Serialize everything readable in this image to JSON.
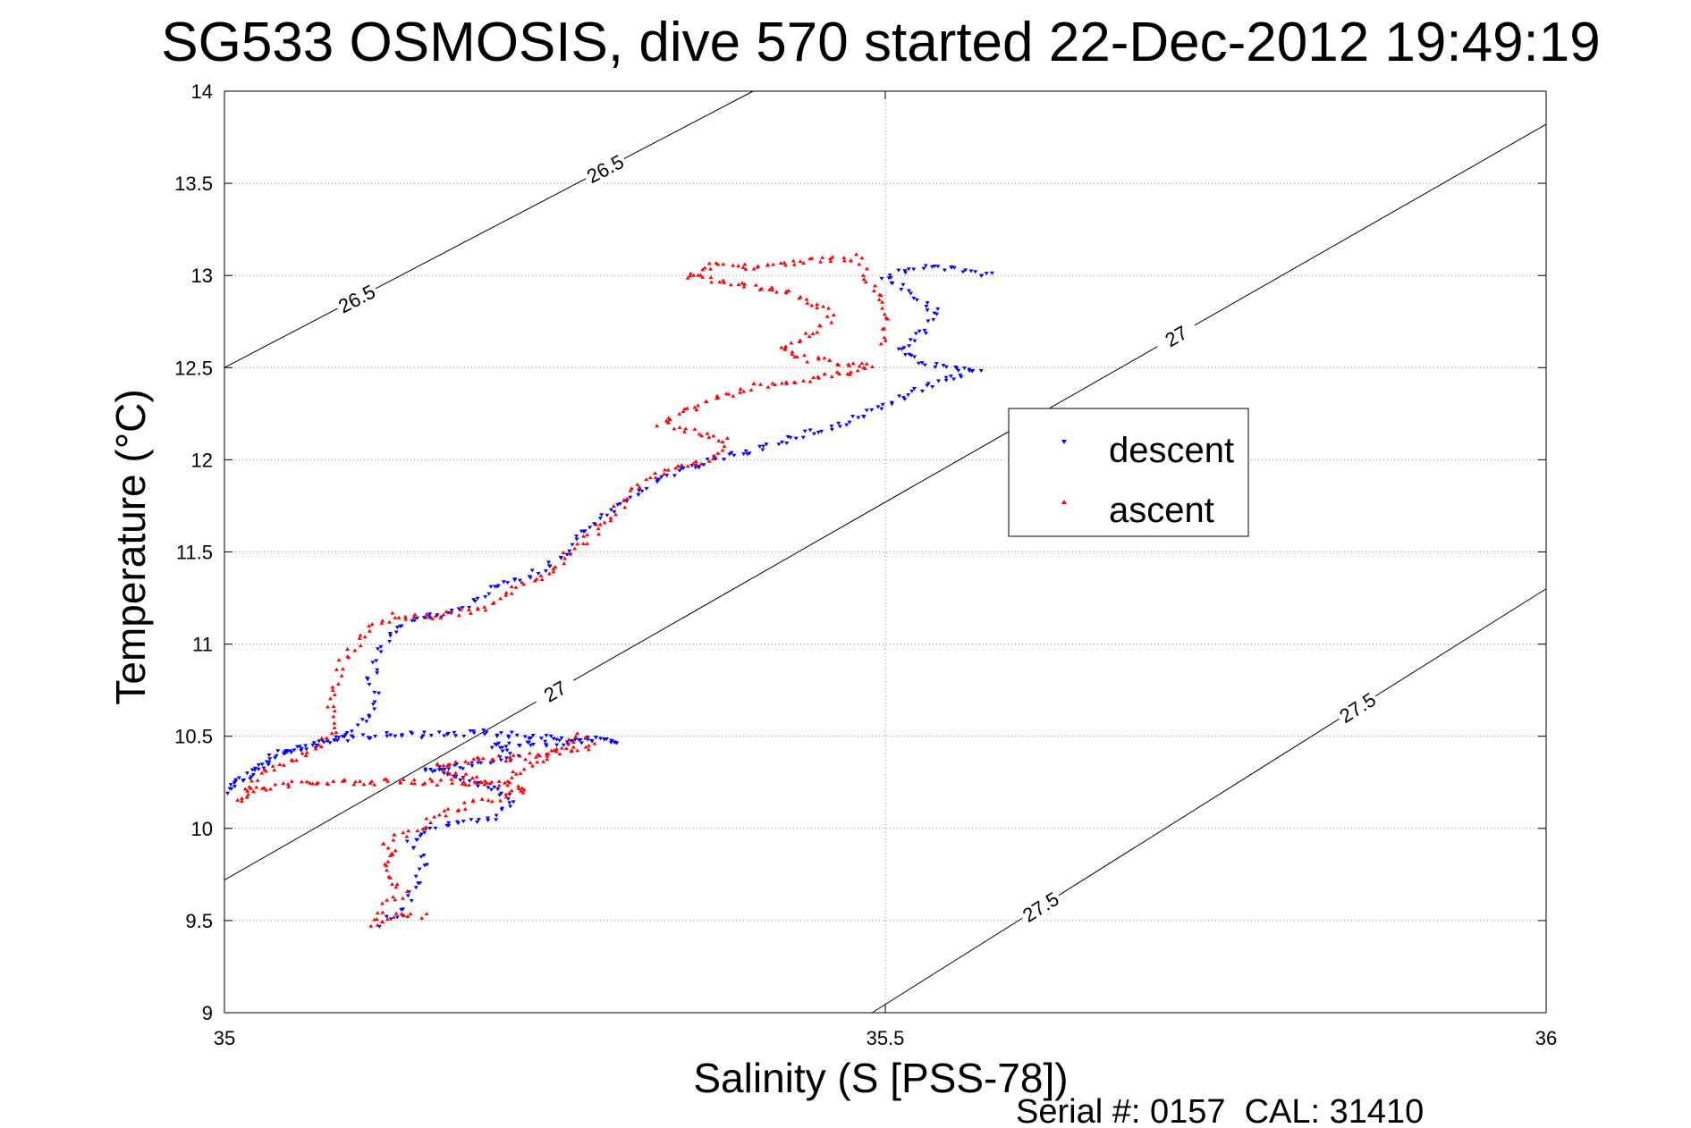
{
  "chart_data": {
    "type": "scatter",
    "title": "SG533 OSMOSIS, dive 570 started 22-Dec-2012 19:49:19",
    "xlabel": "Salinity (S [PSS-78])",
    "ylabel": "Temperature (°C)",
    "footer": "Serial #: 0157  CAL: 31410",
    "xlim": [
      35,
      36
    ],
    "ylim": [
      9,
      14
    ],
    "x_ticks": [
      "35",
      "35.5",
      "36"
    ],
    "y_ticks": [
      "9",
      "9.5",
      "10",
      "10.5",
      "11",
      "11.5",
      "12",
      "12.5",
      "13",
      "13.5",
      "14"
    ],
    "grid": "dotted",
    "legend_position": "right-center",
    "series": [
      {
        "name": "descent",
        "color": "#0000ff",
        "marker": "triangle-down",
        "path": [
          [
            35.12,
            9.48
          ],
          [
            35.135,
            9.55
          ],
          [
            35.14,
            9.62
          ],
          [
            35.145,
            9.72
          ],
          [
            35.15,
            9.82
          ],
          [
            35.14,
            9.92
          ],
          [
            35.155,
            10.0
          ],
          [
            35.2,
            10.05
          ],
          [
            35.22,
            10.15
          ],
          [
            35.2,
            10.22
          ],
          [
            35.17,
            10.3
          ],
          [
            35.15,
            10.32
          ],
          [
            35.2,
            10.35
          ],
          [
            35.22,
            10.4
          ],
          [
            35.2,
            10.45
          ],
          [
            35.3,
            10.48
          ],
          [
            35.26,
            10.48
          ],
          [
            35.2,
            10.52
          ],
          [
            35.1,
            10.5
          ],
          [
            35.06,
            10.45
          ],
          [
            35.03,
            10.35
          ],
          [
            35.0,
            10.2
          ],
          [
            35.04,
            10.4
          ],
          [
            35.09,
            10.5
          ],
          [
            35.11,
            10.6
          ],
          [
            35.115,
            10.7
          ],
          [
            35.11,
            10.8
          ],
          [
            35.115,
            10.9
          ],
          [
            35.12,
            11.0
          ],
          [
            35.13,
            11.1
          ],
          [
            35.155,
            11.15
          ],
          [
            35.18,
            11.2
          ],
          [
            35.2,
            11.3
          ],
          [
            35.24,
            11.4
          ],
          [
            35.26,
            11.5
          ],
          [
            35.27,
            11.6
          ],
          [
            35.29,
            11.7
          ],
          [
            35.31,
            11.8
          ],
          [
            35.33,
            11.9
          ],
          [
            35.37,
            12.0
          ],
          [
            35.4,
            12.05
          ],
          [
            35.42,
            12.1
          ],
          [
            35.47,
            12.2
          ],
          [
            35.5,
            12.3
          ],
          [
            35.53,
            12.4
          ],
          [
            35.57,
            12.48
          ],
          [
            35.55,
            12.5
          ],
          [
            35.53,
            12.53
          ],
          [
            35.51,
            12.6
          ],
          [
            35.53,
            12.7
          ],
          [
            35.54,
            12.8
          ],
          [
            35.52,
            12.9
          ],
          [
            35.5,
            13.0
          ],
          [
            35.53,
            13.05
          ],
          [
            35.585,
            13.0
          ]
        ]
      },
      {
        "name": "ascent",
        "color": "#ff0000",
        "marker": "triangle-up",
        "path": [
          [
            35.15,
            9.52
          ],
          [
            35.13,
            9.52
          ],
          [
            35.11,
            9.48
          ],
          [
            35.12,
            9.58
          ],
          [
            35.135,
            9.65
          ],
          [
            35.125,
            9.75
          ],
          [
            35.12,
            9.82
          ],
          [
            35.13,
            9.88
          ],
          [
            35.12,
            9.92
          ],
          [
            35.18,
            10.12
          ],
          [
            35.2,
            10.15
          ],
          [
            35.23,
            10.22
          ],
          [
            35.2,
            10.25
          ],
          [
            35.17,
            10.3
          ],
          [
            35.16,
            10.35
          ],
          [
            35.21,
            10.38
          ],
          [
            35.22,
            10.38
          ],
          [
            35.28,
            10.45
          ],
          [
            35.27,
            10.5
          ],
          [
            35.21,
            10.25
          ],
          [
            35.12,
            10.25
          ],
          [
            35.06,
            10.25
          ],
          [
            35.02,
            10.2
          ],
          [
            35.01,
            10.15
          ],
          [
            35.03,
            10.3
          ],
          [
            35.06,
            10.4
          ],
          [
            35.08,
            10.5
          ],
          [
            35.085,
            10.6
          ],
          [
            35.08,
            10.7
          ],
          [
            35.085,
            10.8
          ],
          [
            35.09,
            10.9
          ],
          [
            35.1,
            11.0
          ],
          [
            35.11,
            11.1
          ],
          [
            35.13,
            11.15
          ],
          [
            35.16,
            11.15
          ],
          [
            35.2,
            11.2
          ],
          [
            35.22,
            11.3
          ],
          [
            35.25,
            11.4
          ],
          [
            35.26,
            11.5
          ],
          [
            35.28,
            11.6
          ],
          [
            35.3,
            11.75
          ],
          [
            35.32,
            11.9
          ],
          [
            35.34,
            11.95
          ],
          [
            35.37,
            12.0
          ],
          [
            35.38,
            12.1
          ],
          [
            35.33,
            12.2
          ],
          [
            35.36,
            12.3
          ],
          [
            35.4,
            12.4
          ],
          [
            35.45,
            12.45
          ],
          [
            35.49,
            12.5
          ],
          [
            35.44,
            12.55
          ],
          [
            35.42,
            12.6
          ],
          [
            35.45,
            12.7
          ],
          [
            35.46,
            12.8
          ],
          [
            35.43,
            12.9
          ],
          [
            35.35,
            13.0
          ],
          [
            35.37,
            13.05
          ],
          [
            35.4,
            13.05
          ],
          [
            35.48,
            13.1
          ],
          [
            35.49,
            12.95
          ],
          [
            35.5,
            12.8
          ],
          [
            35.5,
            12.6
          ]
        ]
      }
    ],
    "contours": [
      {
        "label": "26.5",
        "points": [
          [
            35.0,
            12.5
          ],
          [
            35.4,
            14.0
          ]
        ]
      },
      {
        "label": "27",
        "points": [
          [
            35.0,
            9.72
          ],
          [
            36.0,
            13.82
          ]
        ]
      },
      {
        "label": "27.5",
        "points": [
          [
            35.49,
            9.0
          ],
          [
            36.0,
            11.3
          ]
        ]
      }
    ]
  },
  "legend": {
    "descent_label": "descent",
    "ascent_label": "ascent"
  }
}
